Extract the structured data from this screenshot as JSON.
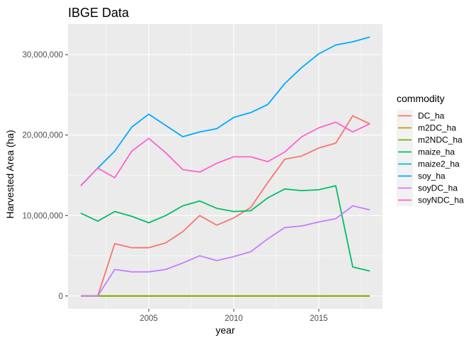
{
  "chart_data": {
    "type": "line",
    "title": "IBGE Data",
    "xlabel": "year",
    "ylabel": "Harvested Area (ha)",
    "xlim": [
      2000.25,
      2018.75
    ],
    "ylim": [
      -1600000,
      33800000
    ],
    "x_ticks": [
      2005,
      2010,
      2015
    ],
    "x_tick_labels": [
      "2005",
      "2010",
      "2015"
    ],
    "y_ticks": [
      0,
      10000000,
      20000000,
      30000000
    ],
    "y_tick_labels": [
      "0",
      "10,000,000",
      "20,000,000",
      "30,000,000"
    ],
    "grid": true,
    "legend_title": "commodity",
    "legend_position": "right",
    "x": [
      2001,
      2002,
      2003,
      2004,
      2005,
      2006,
      2007,
      2008,
      2009,
      2010,
      2011,
      2012,
      2013,
      2014,
      2015,
      2016,
      2017,
      2018
    ],
    "series": [
      {
        "name": "DC_ha",
        "color": "#F8766D",
        "x": [
          2001,
          2002,
          2003,
          2004,
          2005,
          2006,
          2007,
          2008,
          2009,
          2010,
          2011,
          2012,
          2013,
          2014,
          2015,
          2016,
          2017,
          2018
        ],
        "values": [
          0,
          0,
          6500000,
          6000000,
          6000000,
          6600000,
          8000000,
          10000000,
          8800000,
          9700000,
          11000000,
          14100000,
          17000000,
          17400000,
          18400000,
          19000000,
          22400000,
          21400000
        ]
      },
      {
        "name": "m2DC_ha",
        "color": "#CD9600",
        "x": [
          2001,
          2002,
          2003,
          2004,
          2005,
          2006,
          2007,
          2008,
          2009,
          2010,
          2011,
          2012,
          2013,
          2014,
          2015,
          2016,
          2017,
          2018
        ],
        "values": [
          0,
          0,
          0,
          0,
          0,
          0,
          0,
          0,
          0,
          0,
          0,
          0,
          0,
          0,
          0,
          0,
          0,
          0
        ]
      },
      {
        "name": "m2NDC_ha",
        "color": "#7CAE00",
        "x": [
          2001,
          2002,
          2003,
          2004,
          2005,
          2006,
          2007,
          2008,
          2009,
          2010,
          2011,
          2012,
          2013,
          2014,
          2015,
          2016,
          2017,
          2018
        ],
        "values": [
          0,
          0,
          0,
          0,
          0,
          0,
          0,
          0,
          0,
          0,
          0,
          0,
          0,
          0,
          0,
          0,
          0,
          0
        ]
      },
      {
        "name": "maize_ha",
        "color": "#00BE67",
        "x": [
          2001,
          2002,
          2003,
          2004,
          2005,
          2006,
          2007,
          2008,
          2009,
          2010,
          2011,
          2012,
          2013,
          2014,
          2015,
          2016,
          2017,
          2018
        ],
        "values": [
          10300000,
          9300000,
          10500000,
          9900000,
          9100000,
          10000000,
          11200000,
          11800000,
          10900000,
          10500000,
          10600000,
          12200000,
          13300000,
          13100000,
          13200000,
          13700000,
          3600000,
          3100000
        ]
      },
      {
        "name": "maize2_ha",
        "color": "#00BFC4",
        "x": [],
        "values": []
      },
      {
        "name": "soy_ha",
        "color": "#00A9FF",
        "x": [
          2001,
          2002,
          2003,
          2004,
          2005,
          2006,
          2007,
          2008,
          2009,
          2010,
          2011,
          2012,
          2013,
          2014,
          2015,
          2016,
          2017,
          2018
        ],
        "values": [
          13700000,
          15900000,
          18000000,
          21000000,
          22600000,
          21200000,
          19800000,
          20400000,
          20800000,
          22200000,
          22800000,
          23800000,
          26400000,
          28400000,
          30100000,
          31200000,
          31600000,
          32200000
        ]
      },
      {
        "name": "soyDC_ha",
        "color": "#C77CFF",
        "x": [
          2001,
          2002,
          2003,
          2004,
          2005,
          2006,
          2007,
          2008,
          2009,
          2010,
          2011,
          2012,
          2013,
          2014,
          2015,
          2016,
          2017,
          2018
        ],
        "values": [
          0,
          0,
          3300000,
          3000000,
          3000000,
          3300000,
          4100000,
          5000000,
          4400000,
          4900000,
          5500000,
          7100000,
          8500000,
          8700000,
          9200000,
          9600000,
          11200000,
          10700000
        ]
      },
      {
        "name": "soyNDC_ha",
        "color": "#FF61CC",
        "x": [
          2001,
          2002,
          2003,
          2004,
          2005,
          2006,
          2007,
          2008,
          2009,
          2010,
          2011,
          2012,
          2013,
          2014,
          2015,
          2016,
          2017,
          2018
        ],
        "values": [
          13700000,
          15900000,
          14700000,
          18000000,
          19600000,
          17800000,
          15700000,
          15400000,
          16500000,
          17300000,
          17300000,
          16700000,
          17900000,
          19800000,
          20900000,
          21600000,
          20400000,
          21400000
        ]
      }
    ]
  },
  "colors": {
    "panel_background": "#EBEBEB",
    "grid_major": "#FFFFFF",
    "tick_label": "#4D4D4D"
  }
}
